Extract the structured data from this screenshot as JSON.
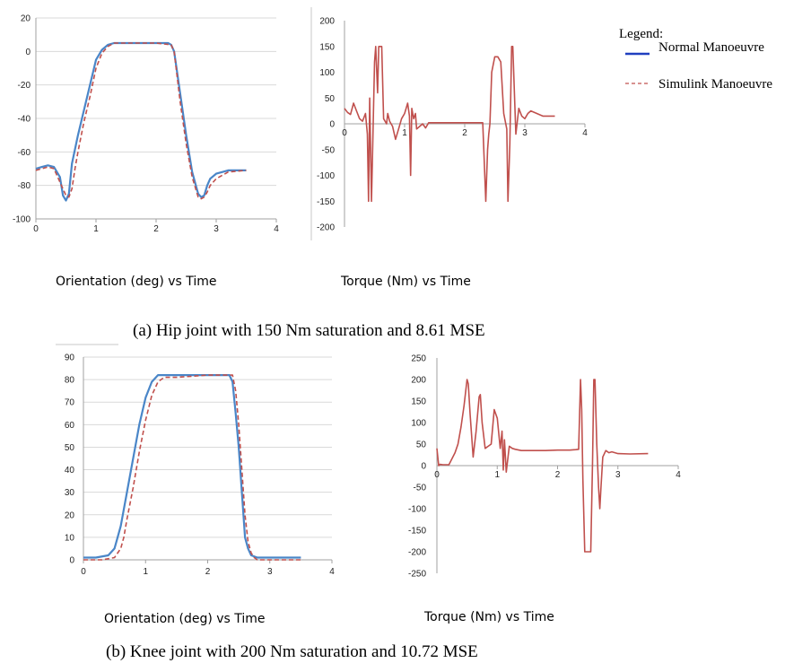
{
  "captions": {
    "hip": "(a) Hip joint with 150 Nm saturation and 8.61 MSE",
    "knee": "(b) Knee joint with 200 Nm saturation and 10.72 MSE"
  },
  "legend": {
    "title": "Legend:",
    "items": [
      {
        "label": "Normal Manoeuvre",
        "color": "#1f3fbf",
        "style": "solid"
      },
      {
        "label": "Simulink Manoeuvre",
        "color": "#c0504d",
        "style": "dashed"
      }
    ]
  },
  "colors": {
    "normal_line": "#4a86c8",
    "simulink_line": "#c0504d",
    "torque_line": "#c0504d",
    "grid": "#d9d9d9",
    "axis": "#a0a0a0"
  },
  "chart_data": [
    {
      "id": "hip-orientation",
      "type": "line",
      "title": "Orientation (deg) vs Time",
      "xlabel": "",
      "ylabel": "",
      "xlim": [
        0,
        4
      ],
      "ylim": [
        -100,
        20
      ],
      "xticks": [
        0,
        1,
        2,
        3,
        4
      ],
      "yticks": [
        -100,
        -80,
        -60,
        -40,
        -20,
        0,
        20
      ],
      "grid": true,
      "series": [
        {
          "name": "Normal Manoeuvre",
          "x": [
            0,
            0.1,
            0.2,
            0.3,
            0.4,
            0.45,
            0.5,
            0.55,
            0.6,
            0.7,
            0.8,
            0.9,
            1.0,
            1.1,
            1.2,
            1.3,
            1.5,
            1.8,
            2.0,
            2.2,
            2.25,
            2.3,
            2.4,
            2.5,
            2.6,
            2.7,
            2.75,
            2.8,
            2.85,
            2.9,
            3.0,
            3.2,
            3.5
          ],
          "y": [
            -70,
            -69,
            -68,
            -69,
            -75,
            -86,
            -89,
            -85,
            -67,
            -50,
            -35,
            -20,
            -5,
            1,
            4,
            5,
            5,
            5,
            5,
            5,
            4,
            0,
            -25,
            -50,
            -72,
            -85,
            -87,
            -86,
            -80,
            -76,
            -73,
            -71,
            -71
          ]
        },
        {
          "name": "Simulink Manoeuvre",
          "x": [
            0,
            0.1,
            0.2,
            0.3,
            0.4,
            0.5,
            0.55,
            0.6,
            0.65,
            0.7,
            0.8,
            0.9,
            1.0,
            1.1,
            1.2,
            1.3,
            1.5,
            1.8,
            2.0,
            2.25,
            2.3,
            2.4,
            2.5,
            2.6,
            2.7,
            2.75,
            2.8,
            2.85,
            2.9,
            3.0,
            3.2,
            3.5
          ],
          "y": [
            -71,
            -70,
            -69,
            -70,
            -78,
            -86,
            -87,
            -82,
            -70,
            -60,
            -42,
            -27,
            -10,
            -1,
            3,
            5,
            5,
            5,
            5,
            4,
            0,
            -30,
            -55,
            -75,
            -87,
            -88,
            -87,
            -84,
            -80,
            -76,
            -72,
            -71
          ]
        }
      ]
    },
    {
      "id": "hip-torque",
      "type": "line",
      "title": "Torque (Nm) vs Time",
      "xlabel": "",
      "ylabel": "",
      "xlim": [
        0,
        4
      ],
      "ylim": [
        -200,
        200
      ],
      "xticks": [
        0,
        1,
        2,
        3,
        4
      ],
      "yticks": [
        -200,
        -150,
        -100,
        -50,
        0,
        50,
        100,
        150,
        200
      ],
      "grid": false,
      "series": [
        {
          "name": "",
          "x": [
            0,
            0.05,
            0.1,
            0.15,
            0.2,
            0.25,
            0.3,
            0.35,
            0.38,
            0.4,
            0.42,
            0.45,
            0.5,
            0.52,
            0.55,
            0.57,
            0.6,
            0.62,
            0.65,
            0.7,
            0.72,
            0.75,
            0.8,
            0.85,
            0.9,
            0.95,
            1.0,
            1.05,
            1.08,
            1.1,
            1.12,
            1.15,
            1.18,
            1.2,
            1.25,
            1.3,
            1.35,
            1.4,
            1.5,
            1.6,
            1.8,
            2.0,
            2.2,
            2.3,
            2.35,
            2.38,
            2.4,
            2.42,
            2.45,
            2.5,
            2.55,
            2.6,
            2.65,
            2.7,
            2.72,
            2.75,
            2.78,
            2.8,
            2.85,
            2.9,
            2.95,
            3.0,
            3.05,
            3.1,
            3.2,
            3.3,
            3.5
          ],
          "y": [
            30,
            22,
            18,
            40,
            25,
            10,
            5,
            20,
            -20,
            -150,
            50,
            -150,
            120,
            150,
            60,
            150,
            150,
            150,
            10,
            0,
            20,
            5,
            -5,
            -30,
            -10,
            10,
            20,
            40,
            15,
            -100,
            30,
            10,
            20,
            -10,
            -5,
            0,
            -8,
            2,
            2,
            2,
            2,
            2,
            2,
            2,
            -150,
            -50,
            -20,
            0,
            100,
            130,
            130,
            120,
            20,
            -10,
            -150,
            -40,
            150,
            150,
            -20,
            30,
            15,
            10,
            20,
            25,
            20,
            15,
            15
          ]
        }
      ]
    },
    {
      "id": "knee-orientation",
      "type": "line",
      "title": "Orientation (deg) vs Time",
      "xlabel": "",
      "ylabel": "",
      "xlim": [
        0,
        4
      ],
      "ylim": [
        0,
        90
      ],
      "xticks": [
        0,
        1,
        2,
        3,
        4
      ],
      "yticks": [
        0,
        10,
        20,
        30,
        40,
        50,
        60,
        70,
        80,
        90
      ],
      "grid": true,
      "series": [
        {
          "name": "Normal Manoeuvre",
          "x": [
            0,
            0.2,
            0.4,
            0.5,
            0.55,
            0.6,
            0.7,
            0.8,
            0.9,
            1.0,
            1.1,
            1.2,
            1.3,
            1.5,
            2.0,
            2.35,
            2.4,
            2.45,
            2.5,
            2.55,
            2.6,
            2.65,
            2.7,
            2.8,
            3.0,
            3.5
          ],
          "y": [
            1,
            1,
            2,
            5,
            10,
            15,
            30,
            45,
            60,
            72,
            79,
            82,
            82,
            82,
            82,
            82,
            79,
            65,
            50,
            30,
            10,
            5,
            2,
            1,
            1,
            1
          ]
        },
        {
          "name": "Simulink Manoeuvre",
          "x": [
            0,
            0.3,
            0.5,
            0.6,
            0.65,
            0.7,
            0.8,
            0.9,
            1.0,
            1.1,
            1.2,
            1.3,
            1.5,
            2.0,
            2.4,
            2.45,
            2.5,
            2.55,
            2.6,
            2.65,
            2.7,
            2.75,
            2.8,
            3.0,
            3.5
          ],
          "y": [
            0,
            0,
            1,
            5,
            10,
            18,
            32,
            48,
            62,
            73,
            79,
            81,
            81,
            82,
            82,
            75,
            60,
            40,
            20,
            8,
            3,
            1,
            0,
            0,
            0
          ]
        }
      ]
    },
    {
      "id": "knee-torque",
      "type": "line",
      "title": "Torque (Nm) vs Time",
      "xlabel": "",
      "ylabel": "",
      "xlim": [
        0,
        4
      ],
      "ylim": [
        -250,
        250
      ],
      "xticks": [
        0,
        1,
        2,
        3,
        4
      ],
      "yticks": [
        -250,
        -200,
        -150,
        -100,
        -50,
        0,
        50,
        100,
        150,
        200,
        250
      ],
      "grid": false,
      "series": [
        {
          "name": "",
          "x": [
            0,
            0.03,
            0.05,
            0.1,
            0.2,
            0.3,
            0.35,
            0.4,
            0.45,
            0.5,
            0.52,
            0.55,
            0.6,
            0.65,
            0.7,
            0.72,
            0.75,
            0.8,
            0.85,
            0.9,
            0.95,
            1.0,
            1.05,
            1.08,
            1.1,
            1.12,
            1.15,
            1.2,
            1.25,
            1.3,
            1.4,
            1.6,
            1.8,
            2.0,
            2.2,
            2.3,
            2.35,
            2.38,
            2.4,
            2.42,
            2.45,
            2.5,
            2.55,
            2.58,
            2.6,
            2.62,
            2.65,
            2.68,
            2.7,
            2.72,
            2.75,
            2.8,
            2.85,
            2.9,
            3.0,
            3.2,
            3.5
          ],
          "y": [
            40,
            0,
            3,
            2,
            2,
            30,
            50,
            90,
            140,
            200,
            190,
            120,
            20,
            80,
            160,
            165,
            100,
            40,
            45,
            50,
            130,
            110,
            40,
            80,
            -10,
            60,
            -15,
            45,
            40,
            38,
            35,
            35,
            35,
            36,
            36,
            37,
            38,
            200,
            130,
            -30,
            -200,
            -200,
            -200,
            10,
            200,
            200,
            50,
            -50,
            -100,
            -50,
            20,
            35,
            30,
            32,
            28,
            27,
            28
          ]
        }
      ]
    }
  ]
}
